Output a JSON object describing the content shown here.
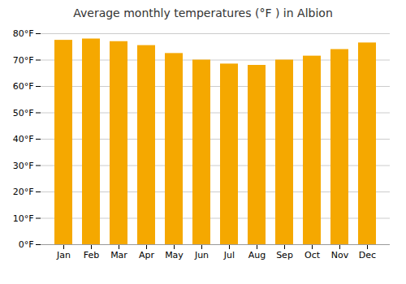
{
  "chart_data": {
    "type": "bar",
    "title": "Average monthly temperatures (°F ) in Albion",
    "categories": [
      "Jan",
      "Feb",
      "Mar",
      "Apr",
      "May",
      "Jun",
      "Jul",
      "Aug",
      "Sep",
      "Oct",
      "Nov",
      "Dec"
    ],
    "values": [
      77.5,
      78.0,
      77.0,
      75.5,
      72.5,
      70.0,
      68.5,
      68.0,
      70.0,
      71.5,
      74.0,
      76.5
    ],
    "color": "#F5A800",
    "ylim": [
      0,
      80
    ],
    "yticks": [
      {
        "value": 0,
        "label": "0°F"
      },
      {
        "value": 10,
        "label": "10°F"
      },
      {
        "value": 20,
        "label": "20°F"
      },
      {
        "value": 30,
        "label": "30°F"
      },
      {
        "value": 40,
        "label": "40°F"
      },
      {
        "value": 50,
        "label": "50°F"
      },
      {
        "value": 60,
        "label": "60°F"
      },
      {
        "value": 70,
        "label": "70°F"
      },
      {
        "value": 80,
        "label": "80°F"
      }
    ],
    "grid": true
  }
}
